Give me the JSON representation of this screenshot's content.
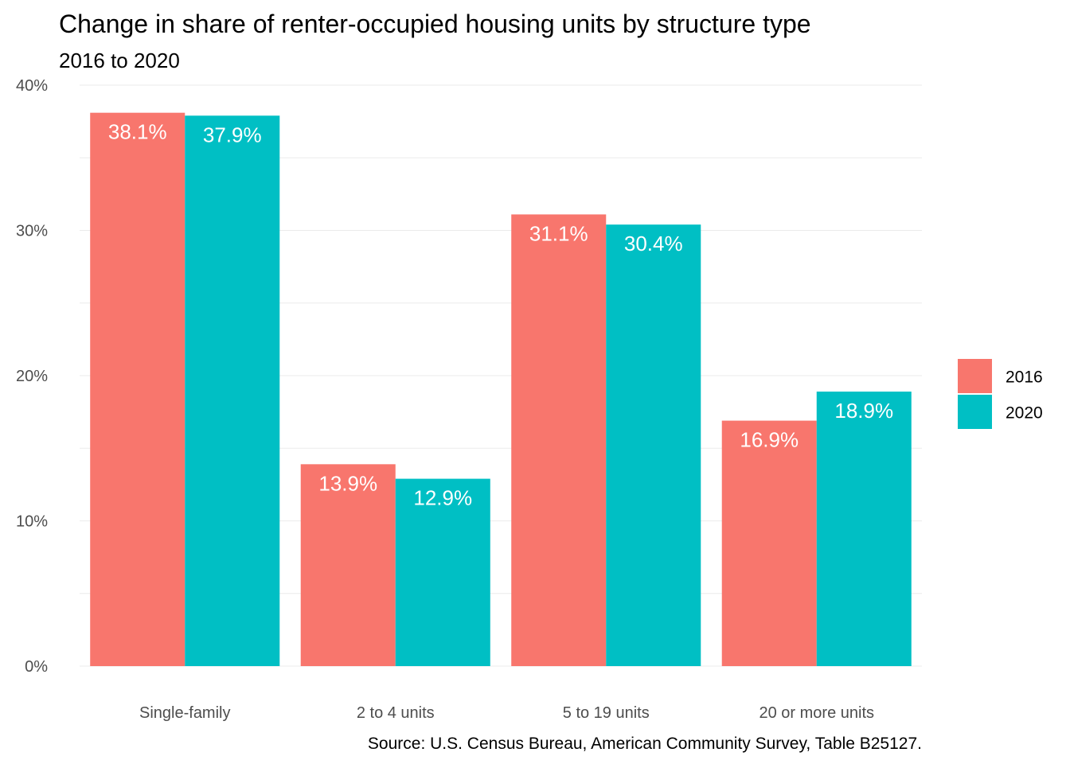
{
  "chart_data": {
    "type": "bar",
    "title": "Change in share of renter-occupied housing units by structure type",
    "subtitle": "2016 to 2020",
    "caption": "Source: U.S. Census Bureau, American Community Survey, Table B25127.",
    "xlabel": "",
    "ylabel": "",
    "categories": [
      "Single-family",
      "2 to 4 units",
      "5 to 19 units",
      "20 or more units"
    ],
    "series": [
      {
        "name": "2016",
        "color": "#F8766D",
        "values": [
          38.1,
          13.9,
          31.1,
          16.9
        ],
        "labels": [
          "38.1%",
          "13.9%",
          "31.1%",
          "16.9%"
        ]
      },
      {
        "name": "2020",
        "color": "#00BFC4",
        "values": [
          37.9,
          12.9,
          30.4,
          18.9
        ],
        "labels": [
          "37.9%",
          "12.9%",
          "30.4%",
          "18.9%"
        ]
      }
    ],
    "ylim": [
      0,
      40
    ],
    "y_ticks": [
      0,
      10,
      20,
      30,
      40
    ],
    "y_tick_labels": [
      "0%",
      "10%",
      "20%",
      "30%",
      "40%"
    ],
    "grid": true,
    "legend_position": "right"
  }
}
